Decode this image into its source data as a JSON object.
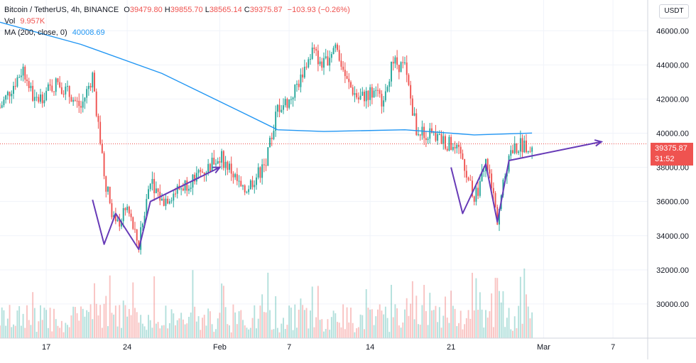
{
  "legend": {
    "symbol": "Bitcoin / TetherUS, 4h, BINANCE",
    "o_label": "O",
    "o_value": "39479.80",
    "h_label": "H",
    "h_value": "39855.70",
    "l_label": "L",
    "l_value": "38565.14",
    "c_label": "C",
    "c_value": "39375.87",
    "change": "−103.93 (−0.26%)",
    "vol_label": "Vol",
    "vol_value": "9.957K",
    "ma_label": "MA (200, close, 0)",
    "ma_value": "40008.69"
  },
  "currency_button": "USDT",
  "price_tag": {
    "price": "39375.87",
    "countdown": "31:52"
  },
  "colors": {
    "up": "#26a69a",
    "down": "#ef5350",
    "ma": "#2196f3",
    "drawing": "#673ab7",
    "grid": "#f0f3fa",
    "axis_text": "#131722"
  },
  "chart_data": {
    "type": "candlestick",
    "title": "Bitcoin / TetherUS, 4h, BINANCE",
    "x_tick_labels": [
      "17",
      "24",
      "Feb",
      "7",
      "14",
      "21",
      "Mar",
      "7"
    ],
    "y_tick_labels": [
      "30000.00",
      "32000.00",
      "34000.00",
      "36000.00",
      "38000.00",
      "40000.00",
      "42000.00",
      "44000.00",
      "46000.00"
    ],
    "y_range": [
      28000,
      47800
    ],
    "x_range_days": [
      "2021-01-13",
      "2021-03-10"
    ],
    "current_close": 39375.87,
    "ma_period": 200,
    "price_anchors": [
      {
        "date": "2021-01-13",
        "close": 41500
      },
      {
        "date": "2021-01-15",
        "close": 43800
      },
      {
        "date": "2021-01-16",
        "close": 41800
      },
      {
        "date": "2021-01-18",
        "close": 43000
      },
      {
        "date": "2021-01-20",
        "close": 41500
      },
      {
        "date": "2021-01-21",
        "close": 43400
      },
      {
        "date": "2021-01-22",
        "close": 37500
      },
      {
        "date": "2021-01-23",
        "close": 34500
      },
      {
        "date": "2021-01-24",
        "close": 35600
      },
      {
        "date": "2021-01-25",
        "close": 33400
      },
      {
        "date": "2021-01-26",
        "close": 37400
      },
      {
        "date": "2021-01-27",
        "close": 36000
      },
      {
        "date": "2021-01-29",
        "close": 37000
      },
      {
        "date": "2021-01-31",
        "close": 38000
      },
      {
        "date": "2021-02-01",
        "close": 38700
      },
      {
        "date": "2021-02-02",
        "close": 37800
      },
      {
        "date": "2021-02-03",
        "close": 36500
      },
      {
        "date": "2021-02-05",
        "close": 38200
      },
      {
        "date": "2021-02-06",
        "close": 41500
      },
      {
        "date": "2021-02-07",
        "close": 41900
      },
      {
        "date": "2021-02-08",
        "close": 43200
      },
      {
        "date": "2021-02-09",
        "close": 44800
      },
      {
        "date": "2021-02-10",
        "close": 44000
      },
      {
        "date": "2021-02-11",
        "close": 45200
      },
      {
        "date": "2021-02-12",
        "close": 43000
      },
      {
        "date": "2021-02-13",
        "close": 42000
      },
      {
        "date": "2021-02-14",
        "close": 42400
      },
      {
        "date": "2021-02-15",
        "close": 42000
      },
      {
        "date": "2021-02-16",
        "close": 44200
      },
      {
        "date": "2021-02-17",
        "close": 43800
      },
      {
        "date": "2021-02-18",
        "close": 40200
      },
      {
        "date": "2021-02-19",
        "close": 40000
      },
      {
        "date": "2021-02-21",
        "close": 39300
      },
      {
        "date": "2021-02-22",
        "close": 38500
      },
      {
        "date": "2021-02-23",
        "close": 36000
      },
      {
        "date": "2021-02-24",
        "close": 38300
      },
      {
        "date": "2021-02-25",
        "close": 35000
      },
      {
        "date": "2021-02-26",
        "close": 38800
      },
      {
        "date": "2021-02-27",
        "close": 39300
      },
      {
        "date": "2021-02-28",
        "close": 39375.87
      }
    ],
    "ma_anchors": [
      {
        "date": "2021-01-13",
        "value": 46500
      },
      {
        "date": "2021-01-20",
        "value": 45200
      },
      {
        "date": "2021-01-27",
        "value": 43500
      },
      {
        "date": "2021-02-03",
        "value": 41200
      },
      {
        "date": "2021-02-06",
        "value": 40200
      },
      {
        "date": "2021-02-10",
        "value": 40100
      },
      {
        "date": "2021-02-17",
        "value": 40200
      },
      {
        "date": "2021-02-23",
        "value": 39900
      },
      {
        "date": "2021-02-28",
        "value": 40008.69
      }
    ],
    "drawings": [
      {
        "name": "left-w-pattern",
        "points": [
          {
            "date": "2021-01-21",
            "price": 36100
          },
          {
            "date": "2021-01-22",
            "price": 33500
          },
          {
            "date": "2021-01-23",
            "price": 35300
          },
          {
            "date": "2021-01-25",
            "price": 33200
          },
          {
            "date": "2021-01-26",
            "price": 36000
          },
          {
            "date": "2021-02-01",
            "price": 38000
          }
        ],
        "arrow": true
      },
      {
        "name": "right-w-pattern",
        "points": [
          {
            "date": "2021-02-21",
            "price": 38000
          },
          {
            "date": "2021-02-22",
            "price": 35300
          },
          {
            "date": "2021-02-24",
            "price": 38200
          },
          {
            "date": "2021-02-25",
            "price": 34800
          },
          {
            "date": "2021-02-26",
            "price": 38400
          },
          {
            "date": "2021-03-06",
            "price": 39500
          }
        ],
        "arrow": true
      }
    ]
  }
}
